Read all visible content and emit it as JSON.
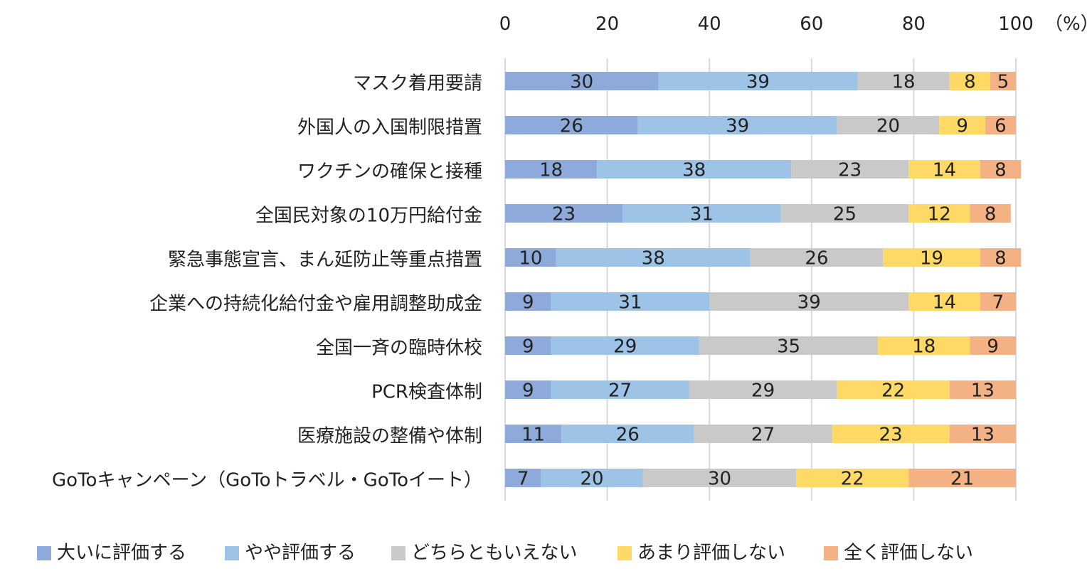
{
  "chart_data": {
    "type": "stacked-bar-horizontal",
    "unit_label": "（%）",
    "x_range": [
      0,
      100
    ],
    "x_ticks": [
      0,
      20,
      40,
      60,
      80,
      100
    ],
    "grid": true,
    "legend_position": "bottom",
    "categories": [
      "マスク着用要請",
      "外国人の入国制限措置",
      "ワクチンの確保と接種",
      "全国民対象の10万円給付金",
      "緊急事態宣言、まん延防止等重点措置",
      "企業への持続化給付金や雇用調整助成金",
      "全国一斉の臨時休校",
      "PCR検査体制",
      "医療施設の整備や体制",
      "GoToキャンペーン（GoToトラベル・GoToイート）"
    ],
    "series": [
      {
        "name": "大いに評価する",
        "color": "#8eaadb",
        "values": [
          30,
          26,
          18,
          23,
          10,
          9,
          9,
          9,
          11,
          7
        ]
      },
      {
        "name": "やや評価する",
        "color": "#9dc3e6",
        "values": [
          39,
          39,
          38,
          31,
          38,
          31,
          29,
          27,
          26,
          20
        ]
      },
      {
        "name": "どちらともいえない",
        "color": "#c9c9c9",
        "values": [
          18,
          20,
          23,
          25,
          26,
          39,
          35,
          29,
          27,
          30
        ]
      },
      {
        "name": "あまり評価しない",
        "color": "#ffd966",
        "values": [
          8,
          9,
          14,
          12,
          19,
          14,
          18,
          22,
          23,
          22
        ]
      },
      {
        "name": "全く評価しない",
        "color": "#f4b183",
        "values": [
          5,
          6,
          8,
          8,
          8,
          7,
          9,
          13,
          13,
          21
        ]
      }
    ]
  }
}
